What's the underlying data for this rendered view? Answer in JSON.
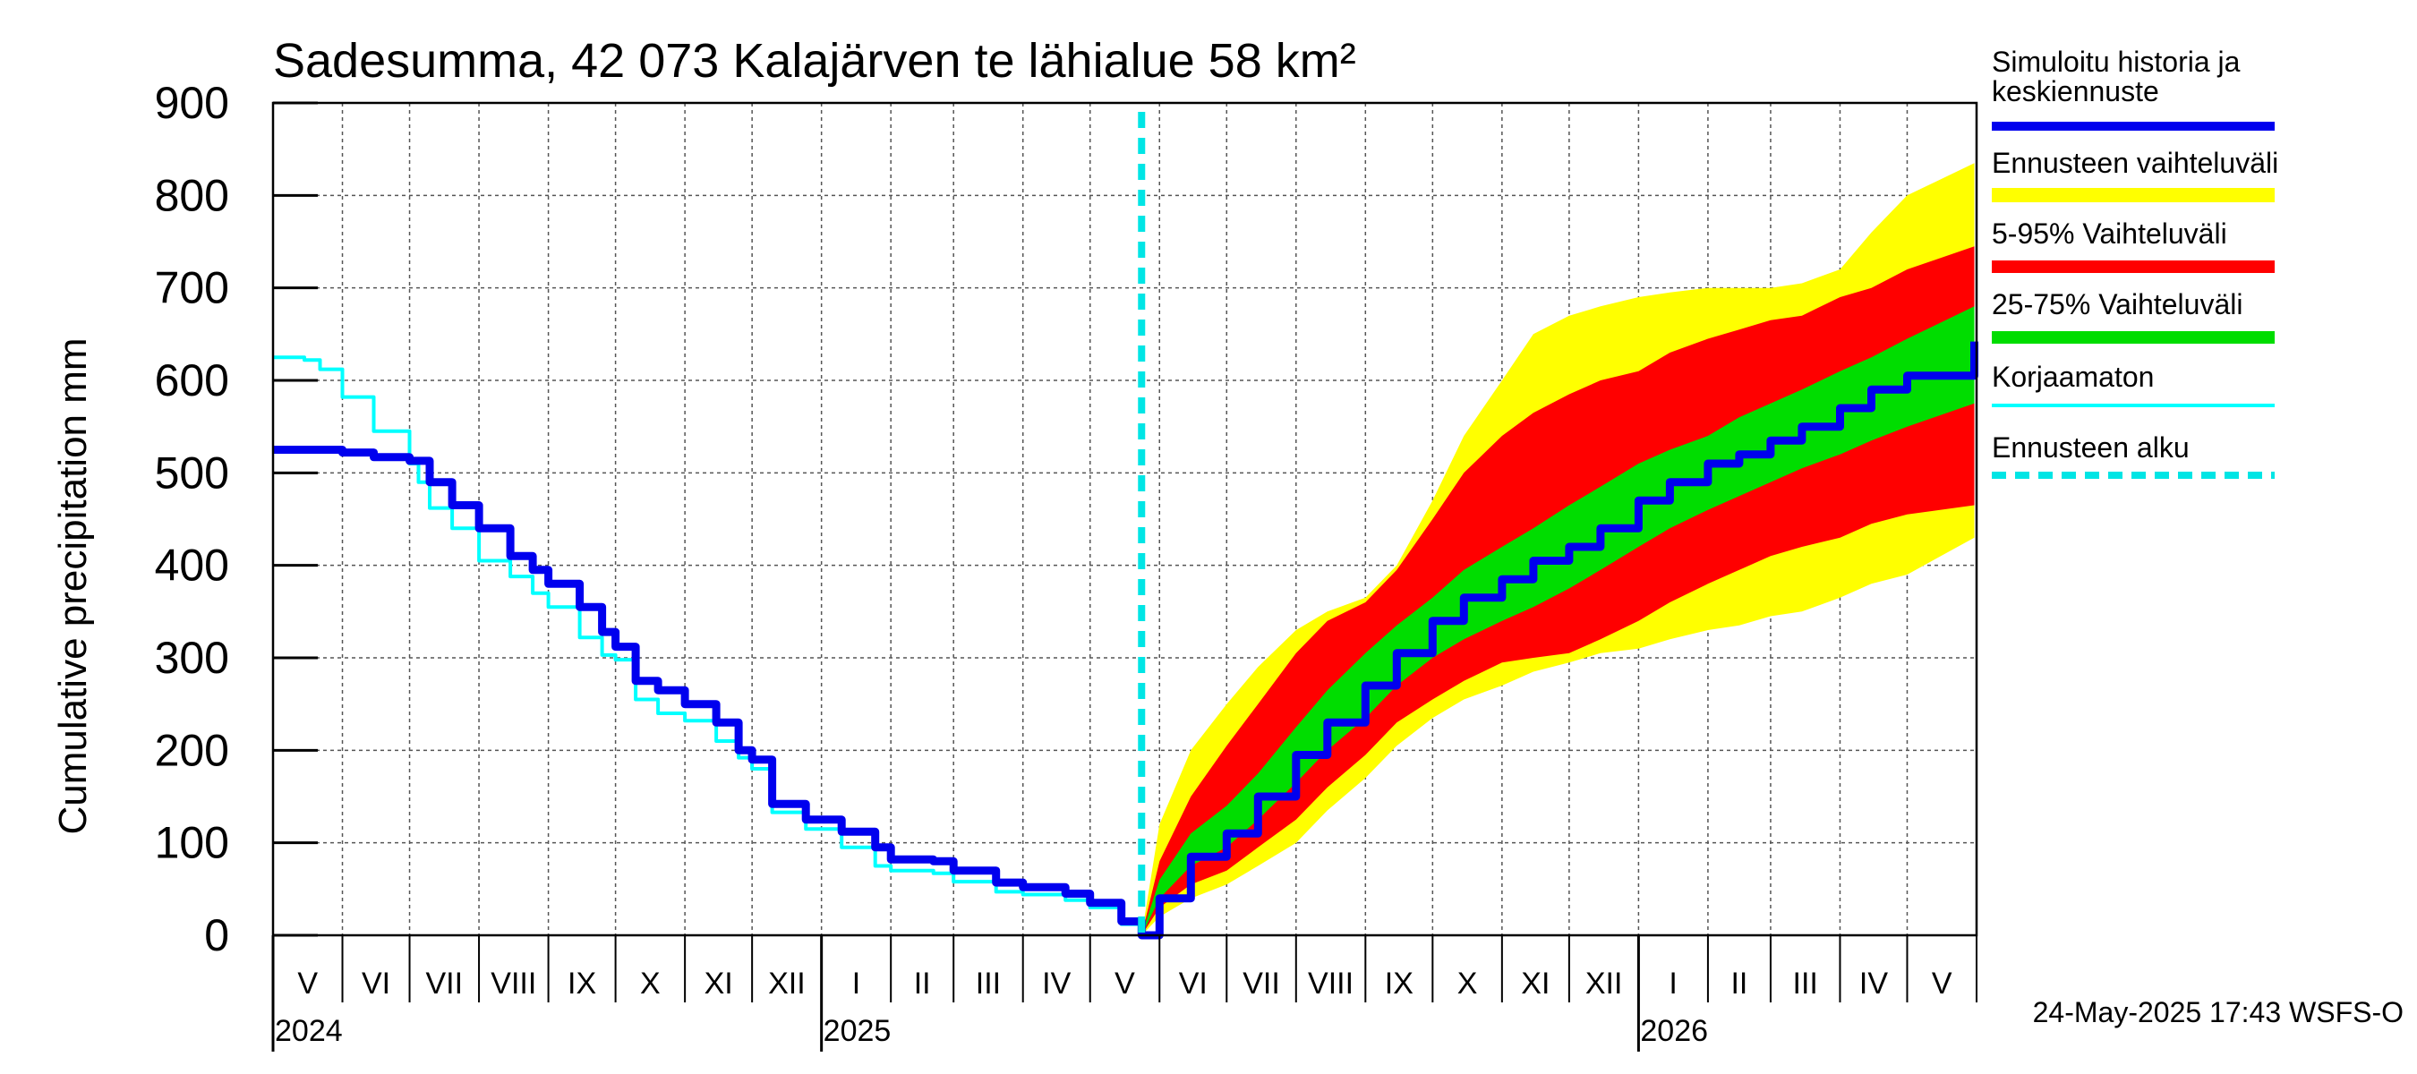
{
  "chart_data": {
    "type": "area",
    "title": "Sadesumma, 42 073 Kalajärven te lähialue 58 km²",
    "ylabel": "Cumulative precipitation   mm",
    "ylim": [
      0,
      900
    ],
    "yticks": [
      0,
      100,
      200,
      300,
      400,
      500,
      600,
      700,
      800,
      900
    ],
    "xlim": [
      "2024-05-01",
      "2026-05-31"
    ],
    "grid": true,
    "months": [
      {
        "label": "V",
        "start": "2024-05-01"
      },
      {
        "label": "VI",
        "start": "2024-06-01"
      },
      {
        "label": "VII",
        "start": "2024-07-01"
      },
      {
        "label": "VIII",
        "start": "2024-08-01"
      },
      {
        "label": "IX",
        "start": "2024-09-01"
      },
      {
        "label": "X",
        "start": "2024-10-01"
      },
      {
        "label": "XI",
        "start": "2024-11-01"
      },
      {
        "label": "XII",
        "start": "2024-12-01"
      },
      {
        "label": "I",
        "start": "2025-01-01"
      },
      {
        "label": "II",
        "start": "2025-02-01"
      },
      {
        "label": "III",
        "start": "2025-03-01"
      },
      {
        "label": "IV",
        "start": "2025-04-01"
      },
      {
        "label": "V",
        "start": "2025-05-01"
      },
      {
        "label": "VI",
        "start": "2025-06-01"
      },
      {
        "label": "VII",
        "start": "2025-07-01"
      },
      {
        "label": "VIII",
        "start": "2025-08-01"
      },
      {
        "label": "IX",
        "start": "2025-09-01"
      },
      {
        "label": "X",
        "start": "2025-10-01"
      },
      {
        "label": "XI",
        "start": "2025-11-01"
      },
      {
        "label": "XII",
        "start": "2025-12-01"
      },
      {
        "label": "I",
        "start": "2026-01-01"
      },
      {
        "label": "II",
        "start": "2026-02-01"
      },
      {
        "label": "III",
        "start": "2026-03-01"
      },
      {
        "label": "IV",
        "start": "2026-04-01"
      },
      {
        "label": "V",
        "start": "2026-05-01"
      }
    ],
    "years": [
      {
        "label": "2024",
        "at": "2024-05-01"
      },
      {
        "label": "2025",
        "at": "2025-01-01"
      },
      {
        "label": "2026",
        "at": "2026-01-01"
      }
    ],
    "forecast_start": "2025-05-24",
    "series": [
      {
        "name": "Korjaamaton",
        "role": "uncorrected",
        "color": "#00ffff",
        "x": [
          "2024-05-01",
          "2024-05-15",
          "2024-05-22",
          "2024-06-01",
          "2024-06-15",
          "2024-07-01",
          "2024-07-05",
          "2024-07-10",
          "2024-07-20",
          "2024-08-01",
          "2024-08-15",
          "2024-08-25",
          "2024-09-01",
          "2024-09-15",
          "2024-09-25",
          "2024-10-01",
          "2024-10-10",
          "2024-10-20",
          "2024-11-01",
          "2024-11-15",
          "2024-11-25",
          "2024-12-01",
          "2024-12-10",
          "2024-12-25",
          "2025-01-10",
          "2025-01-25",
          "2025-02-01",
          "2025-02-20",
          "2025-03-01",
          "2025-03-20",
          "2025-04-01",
          "2025-04-20",
          "2025-05-01",
          "2025-05-15",
          "2025-05-24"
        ],
        "y": [
          625,
          622,
          612,
          582,
          545,
          510,
          490,
          462,
          440,
          405,
          388,
          370,
          355,
          322,
          303,
          298,
          255,
          240,
          232,
          210,
          192,
          180,
          133,
          115,
          95,
          75,
          70,
          67,
          58,
          47,
          44,
          38,
          30,
          12,
          8
        ]
      },
      {
        "name": "Simuloitu historia ja keskiennuste",
        "role": "simulated",
        "color": "#0000ee",
        "x": [
          "2024-05-01",
          "2024-06-01",
          "2024-06-15",
          "2024-07-01",
          "2024-07-10",
          "2024-07-20",
          "2024-08-01",
          "2024-08-15",
          "2024-08-25",
          "2024-09-01",
          "2024-09-15",
          "2024-09-25",
          "2024-10-01",
          "2024-10-10",
          "2024-10-20",
          "2024-11-01",
          "2024-11-15",
          "2024-11-25",
          "2024-12-01",
          "2024-12-10",
          "2024-12-25",
          "2025-01-10",
          "2025-01-25",
          "2025-02-01",
          "2025-02-20",
          "2025-03-01",
          "2025-03-20",
          "2025-04-01",
          "2025-04-20",
          "2025-05-01",
          "2025-05-15",
          "2025-05-24",
          "2025-06-01",
          "2025-06-15",
          "2025-07-01",
          "2025-07-15",
          "2025-08-01",
          "2025-08-15",
          "2025-09-01",
          "2025-09-15",
          "2025-10-01",
          "2025-10-15",
          "2025-11-01",
          "2025-11-15",
          "2025-12-01",
          "2025-12-15",
          "2026-01-01",
          "2026-01-15",
          "2026-02-01",
          "2026-02-15",
          "2026-03-01",
          "2026-03-15",
          "2026-04-01",
          "2026-04-15",
          "2026-05-01",
          "2026-05-31"
        ],
        "y": [
          525,
          522,
          517,
          513,
          490,
          465,
          440,
          410,
          395,
          380,
          355,
          328,
          312,
          275,
          265,
          250,
          230,
          200,
          190,
          142,
          125,
          112,
          95,
          82,
          80,
          70,
          57,
          52,
          45,
          35,
          15,
          0,
          40,
          85,
          110,
          150,
          195,
          230,
          270,
          305,
          340,
          365,
          385,
          405,
          420,
          440,
          470,
          490,
          510,
          520,
          535,
          550,
          570,
          590,
          605,
          642
        ]
      }
    ],
    "bands": [
      {
        "name": "Ennusteen vaihteluväli",
        "role": "full-range",
        "color": "#ffff00",
        "x": [
          "2025-05-24",
          "2025-06-01",
          "2025-06-15",
          "2025-07-01",
          "2025-07-15",
          "2025-08-01",
          "2025-08-15",
          "2025-09-01",
          "2025-09-15",
          "2025-10-01",
          "2025-10-15",
          "2025-11-01",
          "2025-11-15",
          "2025-12-01",
          "2025-12-15",
          "2026-01-01",
          "2026-01-15",
          "2026-02-01",
          "2026-02-15",
          "2026-03-01",
          "2026-03-15",
          "2026-04-01",
          "2026-04-15",
          "2026-05-01",
          "2026-05-31"
        ],
        "low": [
          0,
          20,
          40,
          55,
          75,
          100,
          135,
          170,
          205,
          235,
          255,
          270,
          285,
          295,
          305,
          310,
          320,
          330,
          335,
          345,
          350,
          365,
          380,
          390,
          430
        ],
        "high": [
          0,
          120,
          200,
          250,
          290,
          330,
          350,
          365,
          400,
          470,
          540,
          600,
          650,
          670,
          680,
          690,
          695,
          700,
          700,
          700,
          705,
          720,
          760,
          800,
          835
        ]
      },
      {
        "name": "5-95% Vaihteluväli",
        "role": "p5-p95",
        "color": "#ff0000",
        "x": [
          "2025-05-24",
          "2025-06-01",
          "2025-06-15",
          "2025-07-01",
          "2025-07-15",
          "2025-08-01",
          "2025-08-15",
          "2025-09-01",
          "2025-09-15",
          "2025-10-01",
          "2025-10-15",
          "2025-11-01",
          "2025-11-15",
          "2025-12-01",
          "2025-12-15",
          "2026-01-01",
          "2026-01-15",
          "2026-02-01",
          "2026-02-15",
          "2026-03-01",
          "2026-03-15",
          "2026-04-01",
          "2026-04-15",
          "2026-05-01",
          "2026-05-31"
        ],
        "low": [
          0,
          30,
          55,
          70,
          95,
          125,
          160,
          195,
          230,
          255,
          275,
          295,
          300,
          305,
          320,
          340,
          360,
          380,
          395,
          410,
          420,
          430,
          445,
          455,
          465
        ],
        "high": [
          0,
          80,
          150,
          205,
          250,
          305,
          340,
          360,
          395,
          450,
          500,
          540,
          565,
          585,
          600,
          610,
          630,
          645,
          655,
          665,
          670,
          690,
          700,
          720,
          745
        ]
      },
      {
        "name": "25-75% Vaihteluväli",
        "role": "p25-p75",
        "color": "#00dd00",
        "x": [
          "2025-05-24",
          "2025-06-01",
          "2025-06-15",
          "2025-07-01",
          "2025-07-15",
          "2025-08-01",
          "2025-08-15",
          "2025-09-01",
          "2025-09-15",
          "2025-10-01",
          "2025-10-15",
          "2025-11-01",
          "2025-11-15",
          "2025-12-01",
          "2025-12-15",
          "2026-01-01",
          "2026-01-15",
          "2026-02-01",
          "2026-02-15",
          "2026-03-01",
          "2026-03-15",
          "2026-04-01",
          "2026-04-15",
          "2026-05-01",
          "2026-05-31"
        ],
        "low": [
          0,
          40,
          75,
          95,
          125,
          165,
          200,
          235,
          270,
          300,
          320,
          340,
          355,
          375,
          395,
          420,
          440,
          460,
          475,
          490,
          505,
          520,
          535,
          550,
          575
        ],
        "high": [
          0,
          60,
          110,
          140,
          175,
          225,
          265,
          305,
          335,
          365,
          395,
          420,
          440,
          465,
          485,
          510,
          525,
          540,
          560,
          575,
          590,
          610,
          625,
          645,
          680
        ]
      }
    ],
    "legend": {
      "position": "right",
      "items": [
        {
          "label": "Simuloitu historia ja keskiennuste",
          "color": "#0000ee",
          "style": "thick-line"
        },
        {
          "label": "Ennusteen vaihteluväli",
          "color": "#ffff00",
          "style": "band"
        },
        {
          "label": "5-95% Vaihteluväli",
          "color": "#ff0000",
          "style": "thin-band"
        },
        {
          "label": "25-75% Vaihteluväli",
          "color": "#00dd00",
          "style": "thin-band"
        },
        {
          "label": "Korjaamaton",
          "color": "#00ffff",
          "style": "thin-line"
        },
        {
          "label": "Ennusteen alku",
          "color": "#00e5e5",
          "style": "dashed"
        }
      ]
    },
    "footer": "24-May-2025 17:43 WSFS-O"
  }
}
